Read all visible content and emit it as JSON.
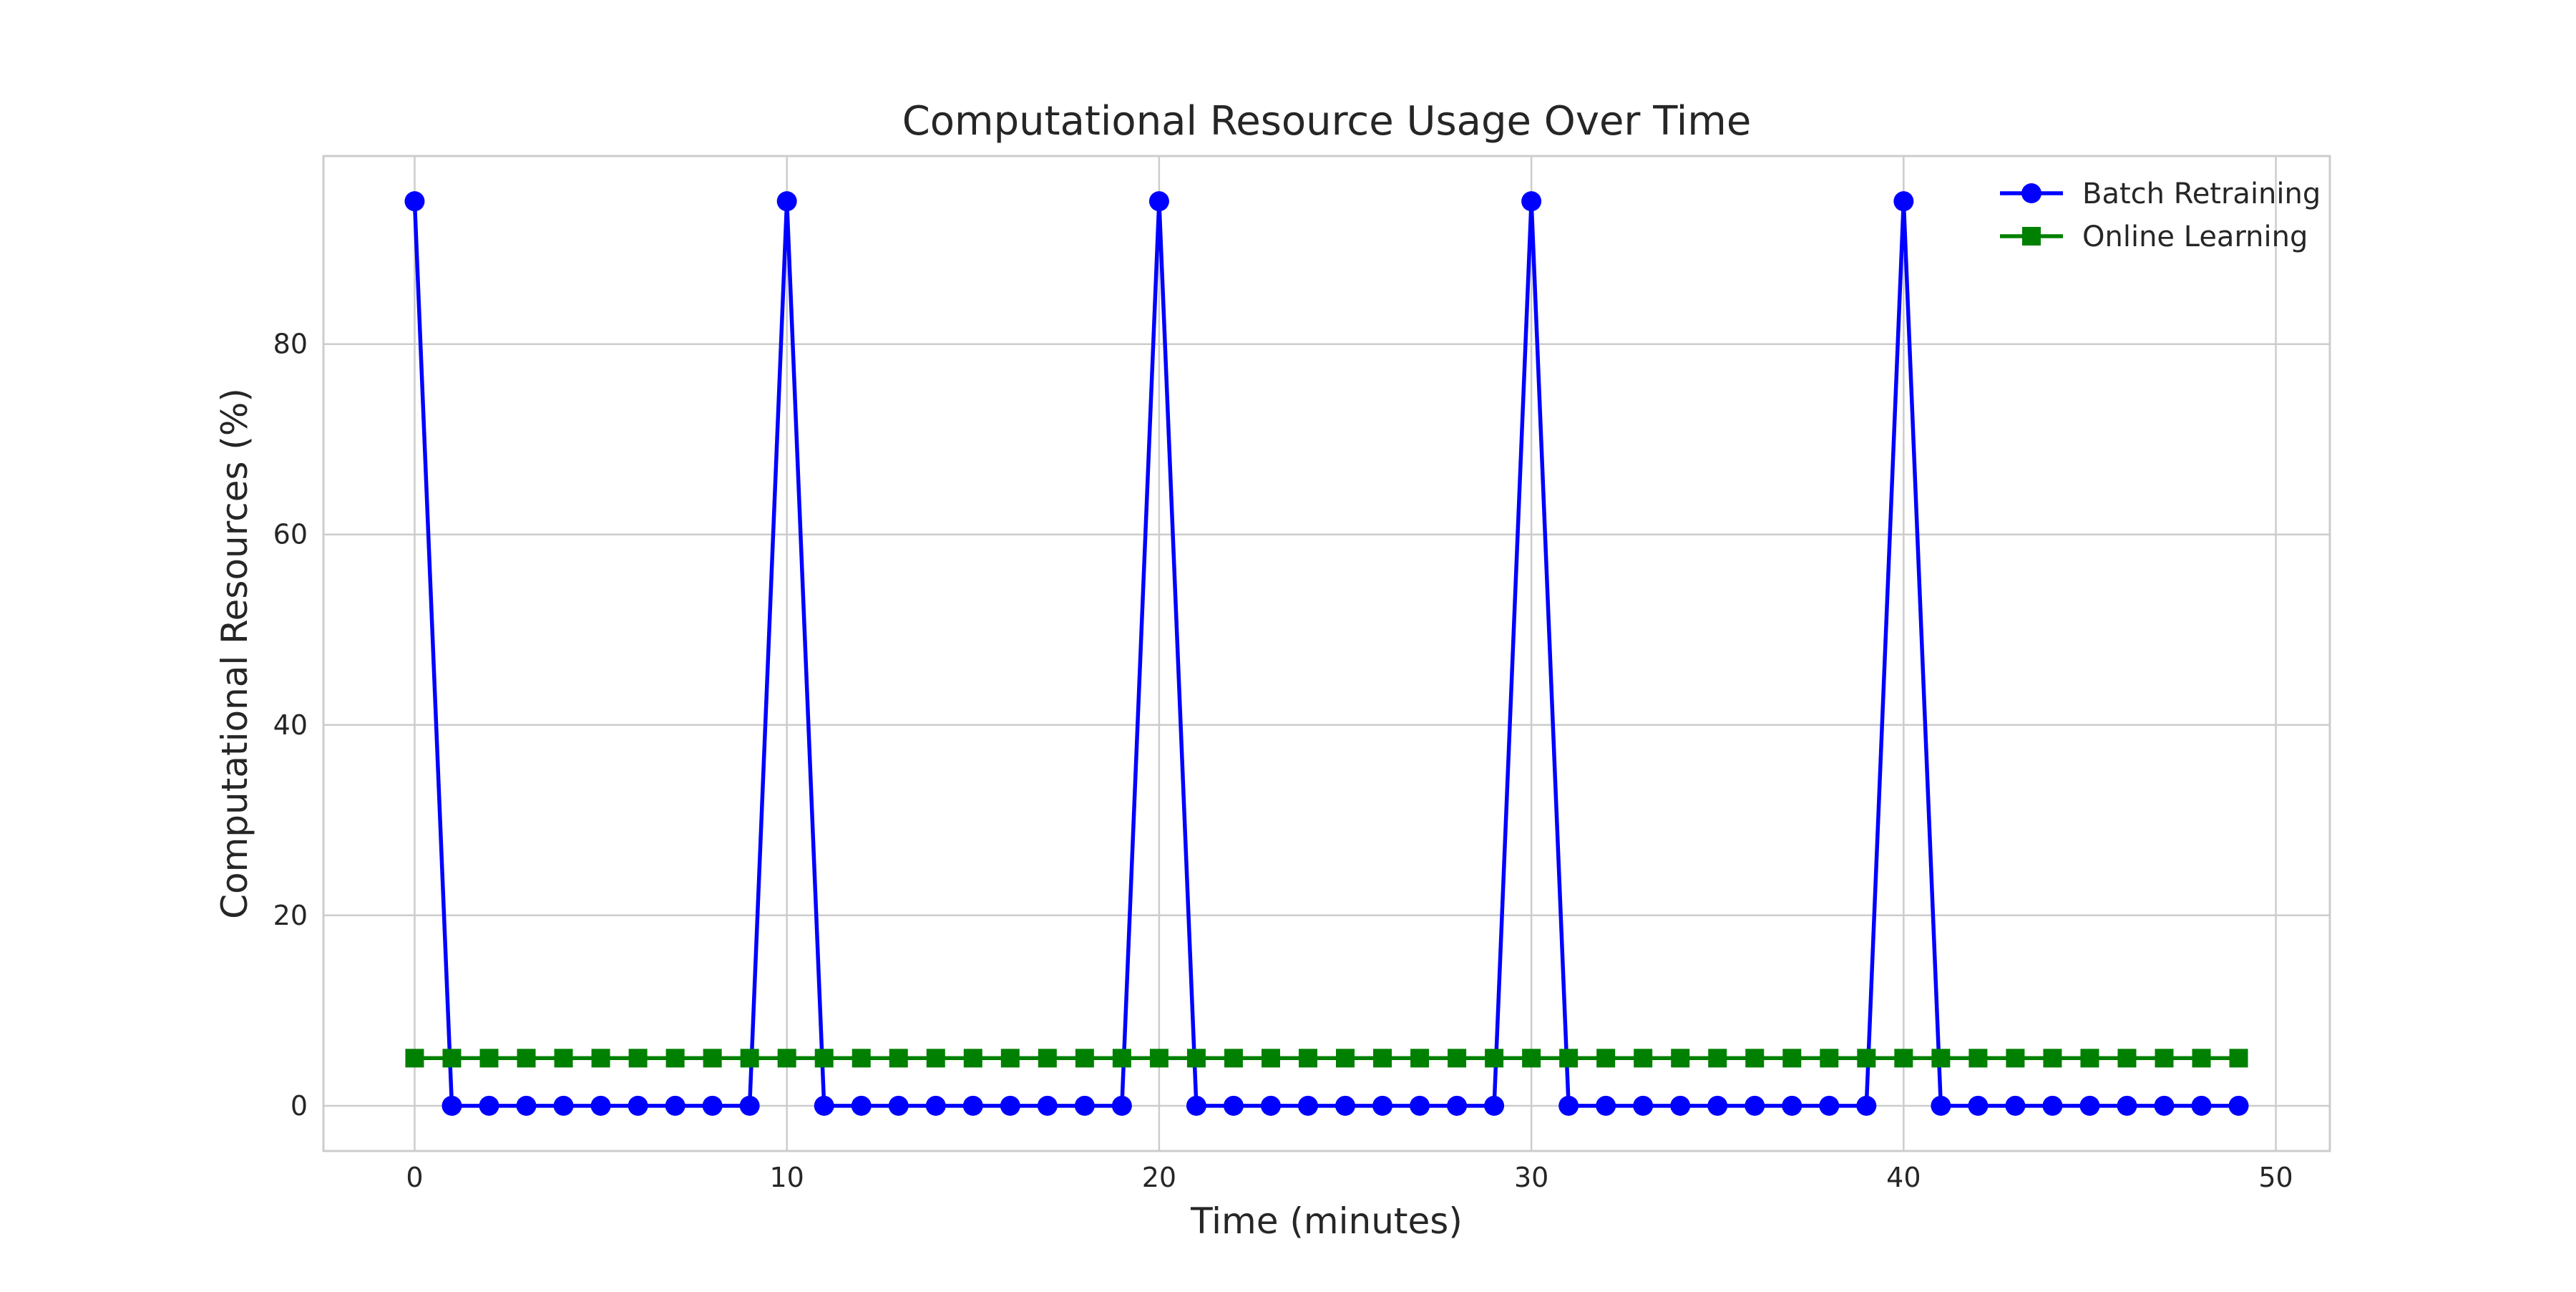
{
  "chart_data": {
    "type": "line",
    "title": "Computational Resource Usage Over Time",
    "xlabel": "Time (minutes)",
    "ylabel": "Computational Resources (%)",
    "xlim": [
      -2.45,
      51.45
    ],
    "ylim": [
      -4.75,
      99.75
    ],
    "xticks": [
      0,
      10,
      20,
      30,
      40,
      50
    ],
    "yticks": [
      0,
      20,
      40,
      60,
      80
    ],
    "grid": true,
    "legend_position": "top-right",
    "x": [
      0,
      1,
      2,
      3,
      4,
      5,
      6,
      7,
      8,
      9,
      10,
      11,
      12,
      13,
      14,
      15,
      16,
      17,
      18,
      19,
      20,
      21,
      22,
      23,
      24,
      25,
      26,
      27,
      28,
      29,
      30,
      31,
      32,
      33,
      34,
      35,
      36,
      37,
      38,
      39,
      40,
      41,
      42,
      43,
      44,
      45,
      46,
      47,
      48,
      49
    ],
    "series": [
      {
        "name": "Batch Retraining",
        "color": "#0000ff",
        "marker": "circle",
        "values": [
          95,
          0,
          0,
          0,
          0,
          0,
          0,
          0,
          0,
          0,
          95,
          0,
          0,
          0,
          0,
          0,
          0,
          0,
          0,
          0,
          95,
          0,
          0,
          0,
          0,
          0,
          0,
          0,
          0,
          0,
          95,
          0,
          0,
          0,
          0,
          0,
          0,
          0,
          0,
          0,
          95,
          0,
          0,
          0,
          0,
          0,
          0,
          0,
          0,
          0
        ]
      },
      {
        "name": "Online Learning",
        "color": "#008000",
        "marker": "square",
        "values": [
          5,
          5,
          5,
          5,
          5,
          5,
          5,
          5,
          5,
          5,
          5,
          5,
          5,
          5,
          5,
          5,
          5,
          5,
          5,
          5,
          5,
          5,
          5,
          5,
          5,
          5,
          5,
          5,
          5,
          5,
          5,
          5,
          5,
          5,
          5,
          5,
          5,
          5,
          5,
          5,
          5,
          5,
          5,
          5,
          5,
          5,
          5,
          5,
          5,
          5
        ]
      }
    ]
  }
}
